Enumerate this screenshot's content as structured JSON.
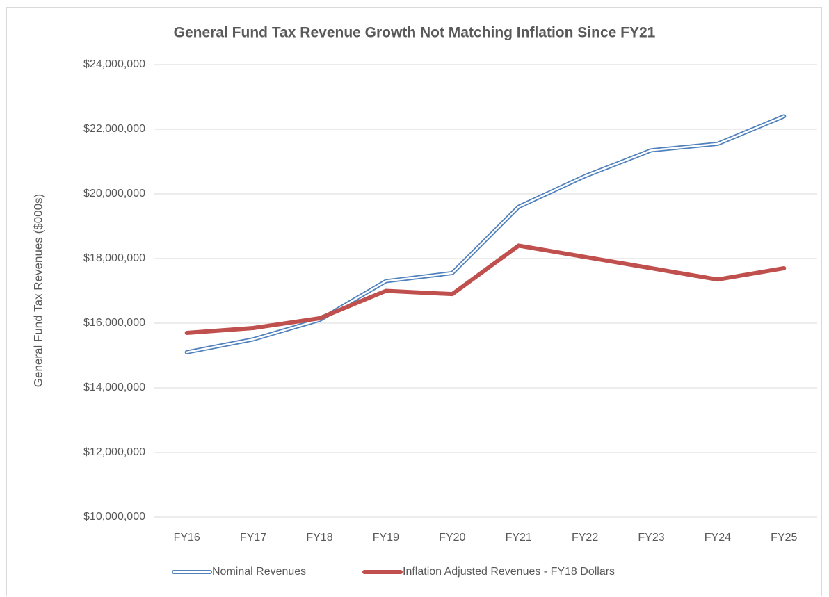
{
  "chart_data": {
    "type": "line",
    "title": "General Fund Tax Revenue Growth Not Matching Inflation Since FY21",
    "y_label": "General Fund Tax Revenues ($000s)",
    "categories": [
      "FY16",
      "FY17",
      "FY18",
      "FY19",
      "FY20",
      "FY21",
      "FY22",
      "FY23",
      "FY24",
      "FY25"
    ],
    "series": [
      {
        "name": "Nominal Revenues",
        "color": "#4f81bd",
        "values": [
          15100000,
          15500000,
          16100000,
          17300000,
          17550000,
          19600000,
          20550000,
          21350000,
          21550000,
          22400000
        ]
      },
      {
        "name": "Inflation Adjusted Revenues - FY18 Dollars",
        "color": "#c0504d",
        "values": [
          15700000,
          15850000,
          16150000,
          17000000,
          16900000,
          18400000,
          18050000,
          17700000,
          17350000,
          17700000
        ]
      }
    ],
    "ylim": [
      10000000,
      24000000
    ],
    "yticks": [
      {
        "value": 10000000,
        "label": "$10,000,000"
      },
      {
        "value": 12000000,
        "label": "$12,000,000"
      },
      {
        "value": 14000000,
        "label": "$14,000,000"
      },
      {
        "value": 16000000,
        "label": "$16,000,000"
      },
      {
        "value": 18000000,
        "label": "$18,000,000"
      },
      {
        "value": 20000000,
        "label": "$20,000,000"
      },
      {
        "value": 22000000,
        "label": "$22,000,000"
      },
      {
        "value": 24000000,
        "label": "$24,000,000"
      }
    ],
    "grid": true,
    "legend": "bottom"
  }
}
